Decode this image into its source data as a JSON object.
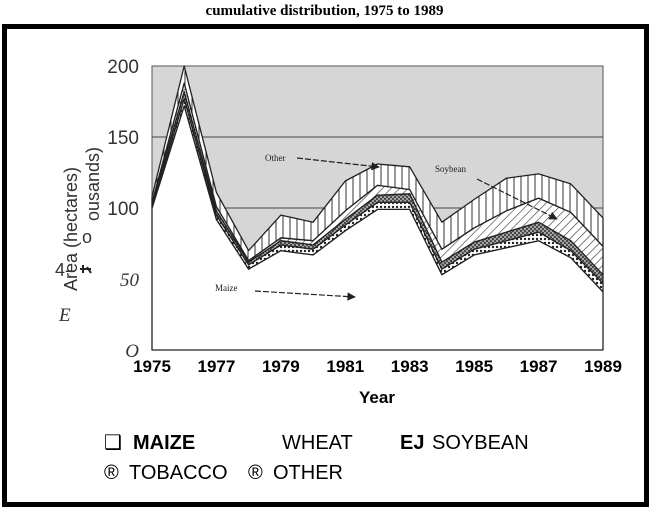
{
  "page": {
    "title": "cumulative distribution, 1975 to 1989"
  },
  "chart_data": {
    "type": "area",
    "title": "cumulative distribution, 1975 to 1989",
    "xlabel": "Year",
    "ylabel_lines": [
      "Area (hectares)",
      "ousands)"
    ],
    "ylim": [
      0,
      200
    ],
    "xlim": [
      1975,
      1989
    ],
    "y_ticks": [
      "200",
      "150",
      "100",
      "50",
      "O"
    ],
    "x_ticks": [
      "1975",
      "1977",
      "1979",
      "1981",
      "1983",
      "1985",
      "1987",
      "1989"
    ],
    "grid": "horizontal at 150 and 100",
    "x": [
      1975,
      1976,
      1977,
      1978,
      1979,
      1980,
      1981,
      1982,
      1983,
      1984,
      1985,
      1986,
      1987,
      1988,
      1989
    ],
    "stacked": true,
    "series": [
      {
        "name": "MAIZE",
        "values": [
          100,
          172,
          92,
          57,
          70,
          67,
          84,
          99,
          99,
          53,
          67,
          72,
          77,
          65,
          41
        ],
        "hatch": "none"
      },
      {
        "name": "TOBACCO",
        "values": [
          1,
          5,
          3,
          3,
          4,
          4,
          4,
          5,
          5,
          4,
          4,
          5,
          6,
          5,
          6
        ],
        "hatch": "dots"
      },
      {
        "name": "WHEAT",
        "values": [
          2,
          5,
          3,
          2,
          3,
          3,
          4,
          5,
          6,
          5,
          5,
          6,
          7,
          7,
          6
        ],
        "hatch": "crosshatch"
      },
      {
        "name": "SOYBEAN",
        "values": [
          1,
          6,
          3,
          1,
          2,
          3,
          6,
          7,
          3,
          9,
          10,
          15,
          17,
          20,
          20
        ],
        "hatch": "diagonal"
      },
      {
        "name": "OTHER",
        "values": [
          4,
          12,
          10,
          7,
          16,
          13,
          21,
          15,
          16,
          19,
          20,
          23,
          17,
          20,
          20
        ],
        "hatch": "vertical"
      }
    ],
    "annotations": [
      {
        "text": "Other",
        "target": "OTHER"
      },
      {
        "text": "Soybean",
        "target": "SOYBEAN"
      },
      {
        "text": "Maize",
        "target": "MAIZE"
      }
    ],
    "stray_labels": [
      "o",
      "4-",
      "E"
    ],
    "legend": {
      "placement": "bottom",
      "items": [
        {
          "symbol": "❑",
          "label": "MAIZE",
          "bold": true
        },
        {
          "symbol": "",
          "label": "WHEAT",
          "bold": false
        },
        {
          "symbol": "EJ",
          "label": "SOYBEAN",
          "bold": false
        },
        {
          "symbol": "®",
          "label": "TOBACCO",
          "bold": false
        },
        {
          "symbol": "®",
          "label": "OTHER",
          "bold": false
        }
      ]
    }
  }
}
